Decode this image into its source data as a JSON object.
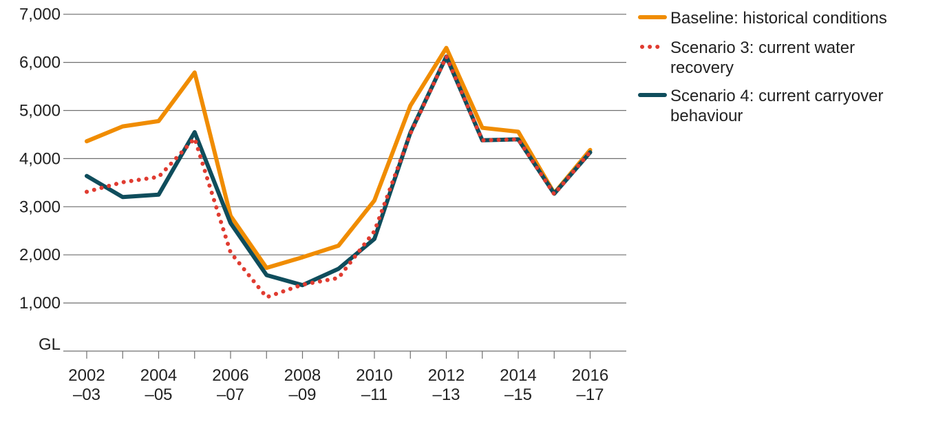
{
  "chart_data": {
    "type": "line",
    "unit": "GL",
    "categories": [
      "2002–03",
      "2003–04",
      "2004–05",
      "2005–06",
      "2006–07",
      "2007–08",
      "2008–09",
      "2009–10",
      "2010–11",
      "2011–12",
      "2012–13",
      "2013–14",
      "2014–15",
      "2015–16",
      "2016–17"
    ],
    "x_tick_labels": [
      {
        "year": "2002",
        "suffix": "–03"
      },
      {
        "year": "2004",
        "suffix": "–05"
      },
      {
        "year": "2006",
        "suffix": "–07"
      },
      {
        "year": "2008",
        "suffix": "–09"
      },
      {
        "year": "2010",
        "suffix": "–11"
      },
      {
        "year": "2012",
        "suffix": "–13"
      },
      {
        "year": "2014",
        "suffix": "–15"
      },
      {
        "year": "2016",
        "suffix": "–17"
      }
    ],
    "y_ticks": [
      "1,000",
      "2,000",
      "3,000",
      "4,000",
      "5,000",
      "6,000",
      "7,000"
    ],
    "ylim": [
      0,
      7000
    ],
    "grid": true,
    "legend_position": "top-right",
    "series": [
      {
        "name": "Baseline: historical conditions",
        "legend_lines": [
          "Baseline: historical conditions"
        ],
        "color": "#F08C00",
        "style": "solid",
        "values": [
          4360,
          4670,
          4780,
          5790,
          2810,
          1730,
          1950,
          2190,
          3130,
          5100,
          6300,
          4640,
          4560,
          3280,
          4180
        ]
      },
      {
        "name": "Scenario 3: current water recovery",
        "legend_lines": [
          "Scenario 3: current water",
          "recovery"
        ],
        "color": "#E03C31",
        "style": "dotted",
        "values": [
          3310,
          3510,
          3620,
          4420,
          2050,
          1120,
          1380,
          1520,
          2490,
          4520,
          6120,
          4380,
          4400,
          3260,
          4140
        ]
      },
      {
        "name": "Scenario 4: current carryover behaviour",
        "legend_lines": [
          "Scenario 4: current carryover",
          "behaviour"
        ],
        "color": "#0F4D5C",
        "style": "solid",
        "values": [
          3640,
          3200,
          3250,
          4550,
          2660,
          1580,
          1370,
          1710,
          2330,
          4540,
          6120,
          4380,
          4400,
          3270,
          4130
        ]
      }
    ]
  }
}
